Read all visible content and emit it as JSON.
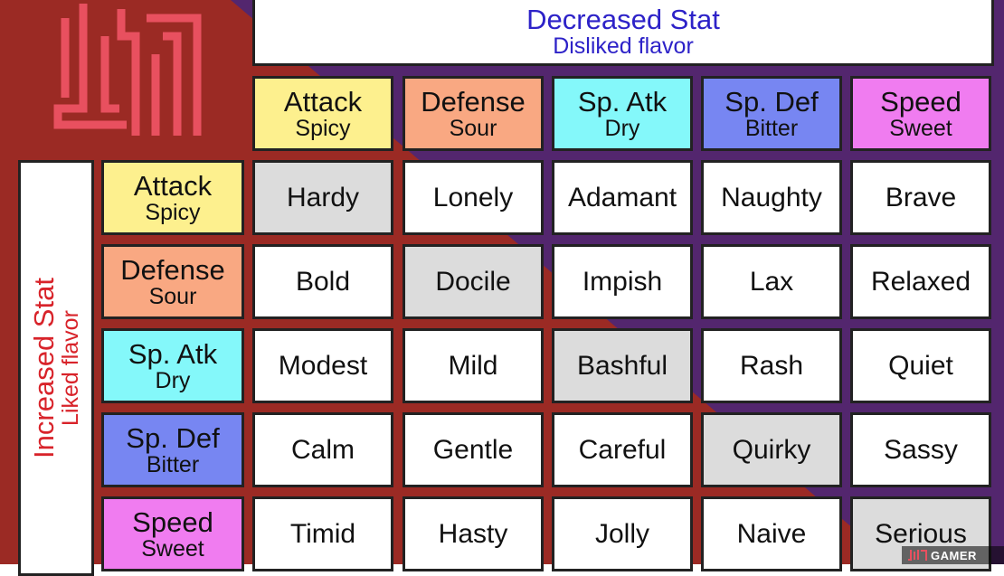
{
  "colors": {
    "red_bg": "#9b2a24",
    "purple_bg": "#53266e",
    "attack": "#fdf08e",
    "defense": "#f9a882",
    "sp_atk": "#84f8fa",
    "sp_def": "#7786f2",
    "speed": "#f07cf0",
    "neutral_cell": "#dcdcdc"
  },
  "top_title": {
    "main": "Decreased Stat",
    "sub": "Disliked flavor"
  },
  "left_title": {
    "main": "Increased Stat",
    "sub": "Liked flavor"
  },
  "columns": [
    {
      "stat": "Attack",
      "flavor": "Spicy",
      "color": "#fdf08e"
    },
    {
      "stat": "Defense",
      "flavor": "Sour",
      "color": "#f9a882"
    },
    {
      "stat": "Sp. Atk",
      "flavor": "Dry",
      "color": "#84f8fa"
    },
    {
      "stat": "Sp. Def",
      "flavor": "Bitter",
      "color": "#7786f2"
    },
    {
      "stat": "Speed",
      "flavor": "Sweet",
      "color": "#f07cf0"
    }
  ],
  "rows": [
    {
      "stat": "Attack",
      "flavor": "Spicy",
      "color": "#fdf08e",
      "natures": [
        "Hardy",
        "Lonely",
        "Adamant",
        "Naughty",
        "Brave"
      ]
    },
    {
      "stat": "Defense",
      "flavor": "Sour",
      "color": "#f9a882",
      "natures": [
        "Bold",
        "Docile",
        "Impish",
        "Lax",
        "Relaxed"
      ]
    },
    {
      "stat": "Sp. Atk",
      "flavor": "Dry",
      "color": "#84f8fa",
      "natures": [
        "Modest",
        "Mild",
        "Bashful",
        "Rash",
        "Quiet"
      ]
    },
    {
      "stat": "Sp. Def",
      "flavor": "Bitter",
      "color": "#7786f2",
      "natures": [
        "Calm",
        "Gentle",
        "Careful",
        "Quirky",
        "Sassy"
      ]
    },
    {
      "stat": "Speed",
      "flavor": "Sweet",
      "color": "#f07cf0",
      "natures": [
        "Timid",
        "Hasty",
        "Jolly",
        "Naive",
        "Serious"
      ]
    }
  ],
  "watermark": {
    "text": "GAMER"
  }
}
